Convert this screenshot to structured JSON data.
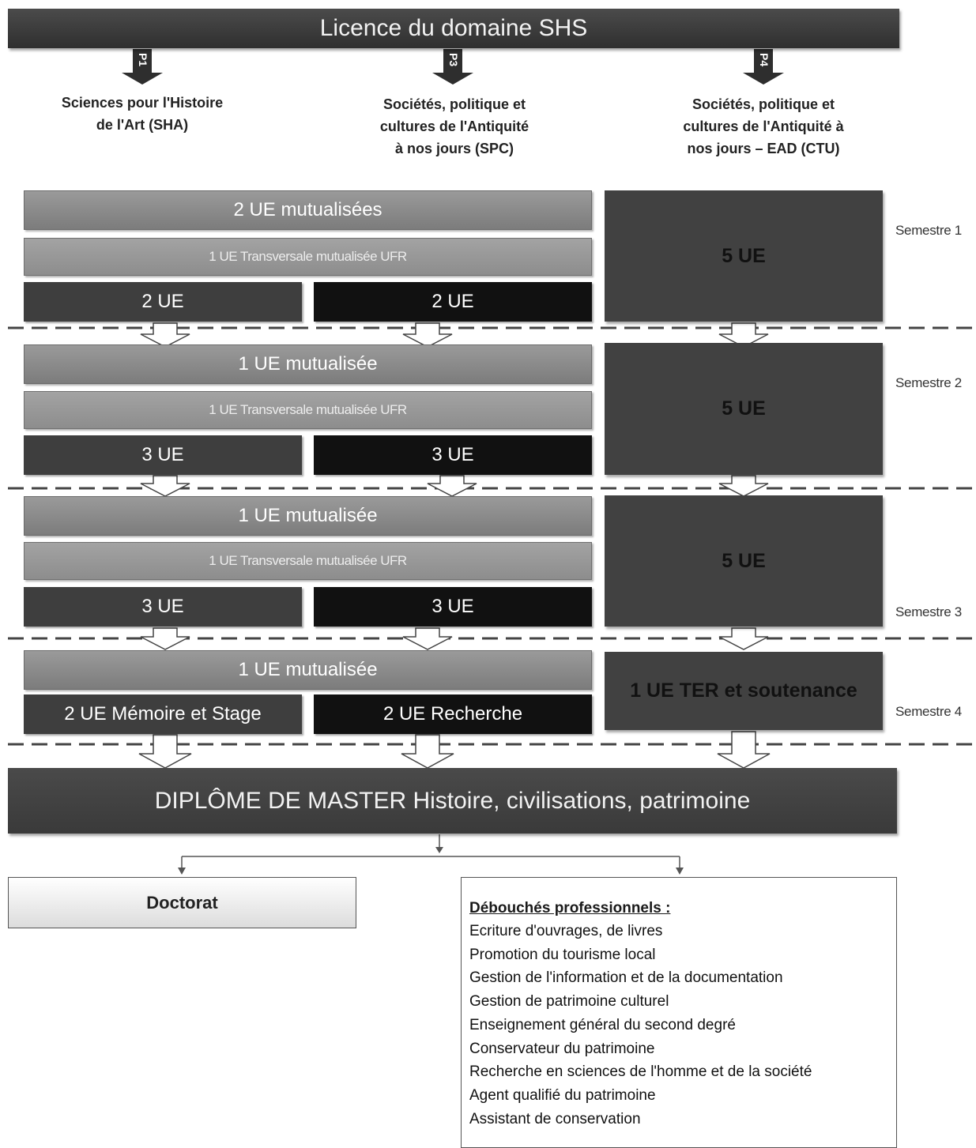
{
  "header": {
    "title": "Licence du domaine SHS"
  },
  "tracks": [
    {
      "code": "P1",
      "lines": [
        "Sciences pour l'Histoire",
        "de l'Art (SHA)"
      ]
    },
    {
      "code": "P3",
      "lines": [
        "Sociétés, politique et",
        "cultures de l'Antiquité",
        "à nos jours (SPC)"
      ]
    },
    {
      "code": "P4",
      "lines": [
        "Sociétés, politique et",
        "cultures de l'Antiquité à",
        "nos jours – EAD (CTU)"
      ]
    }
  ],
  "semesters": {
    "s1": "Semestre 1",
    "s2": "Semestre 2",
    "s3": "Semestre 3",
    "s4": "Semestre 4"
  },
  "blocks": {
    "s1": {
      "mut": "2 UE mutualisées",
      "transversale": "1 UE Transversale mutualisée UFR",
      "sha": "2 UE",
      "spc": "2 UE",
      "ctu": "5 UE"
    },
    "s2": {
      "mut": "1 UE mutualisée",
      "transversale": "1 UE Transversale mutualisée UFR",
      "sha": "3 UE",
      "spc": "3 UE",
      "ctu": "5 UE"
    },
    "s3": {
      "mut": "1 UE mutualisée",
      "transversale": "1 UE Transversale mutualisée UFR",
      "sha": "3 UE",
      "spc": "3 UE",
      "ctu": "5 UE"
    },
    "s4": {
      "mut": "1 UE mutualisée",
      "sha": "2 UE Mémoire et Stage",
      "spc": "2 UE Recherche",
      "ctu": "1 UE TER et soutenance"
    }
  },
  "diploma": "DIPLÔME DE MASTER Histoire, civilisations, patrimoine",
  "doctorat": "Doctorat",
  "debouches": {
    "title": "Débouchés professionnels :",
    "items": [
      "Ecriture d'ouvrages, de livres",
      "Promotion du tourisme local",
      "Gestion de l'information et de la documentation",
      "Gestion de patrimoine culturel",
      "Enseignement général du second degré",
      "Conservateur du patrimoine",
      "Recherche en sciences de l'homme et de la société",
      "Agent qualifié du patrimoine",
      "Assistant de conservation"
    ]
  }
}
